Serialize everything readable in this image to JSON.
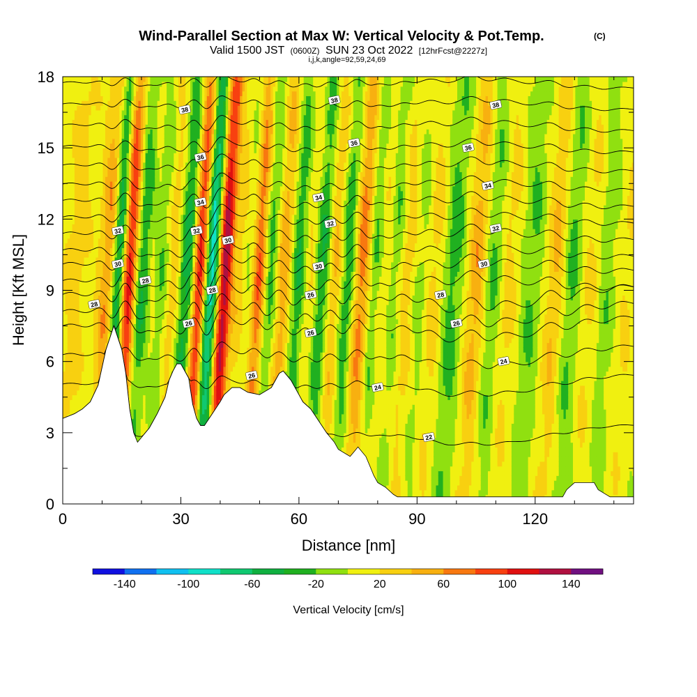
{
  "title": {
    "main": "Wind-Parallel Section at Max W: Vertical Velocity & Pot.Temp.",
    "units_tag": "(C)",
    "valid_a": "Valid 1500 JST",
    "valid_b": "(0600Z)",
    "valid_c": "SUN 23 Oct 2022",
    "valid_d": "[12hrFcst@2227z]",
    "indices": "i,j,k,angle=92,59,24,69"
  },
  "chart_data": {
    "type": "heatmap",
    "xlabel": "Distance [nm]",
    "ylabel": "Height [Kft MSL]",
    "xlim": [
      0,
      145
    ],
    "ylim": [
      0,
      18
    ],
    "x_ticks": [
      "0",
      "30",
      "60",
      "90",
      "120"
    ],
    "x_tick_values": [
      0,
      30,
      60,
      90,
      120
    ],
    "y_ticks": [
      "0",
      "3",
      "6",
      "9",
      "12",
      "15",
      "18"
    ],
    "y_tick_values": [
      0,
      3,
      6,
      9,
      12,
      15,
      18
    ],
    "colorbar": {
      "label": "Vertical Velocity [cm/s]",
      "tick_labels": [
        "-140",
        "-100",
        "-60",
        "-20",
        "20",
        "60",
        "100",
        "140"
      ],
      "tick_values": [
        -140,
        -100,
        -60,
        -20,
        20,
        60,
        100,
        140
      ],
      "bounds": [
        -160,
        -140,
        -120,
        -100,
        -80,
        -60,
        -40,
        -20,
        0,
        20,
        40,
        60,
        80,
        100,
        120,
        140,
        160
      ],
      "colors": [
        "#1010e0",
        "#1070f0",
        "#10c0f0",
        "#10e0c8",
        "#10c870",
        "#10b040",
        "#20b020",
        "#90e010",
        "#f0f010",
        "#f8d010",
        "#f8b010",
        "#f87810",
        "#f84010",
        "#e01010",
        "#b01040",
        "#701080"
      ]
    },
    "w_updraft_bands": [
      {
        "x": 2,
        "amp": 25
      },
      {
        "x": 10.5,
        "amp": 60
      },
      {
        "x": 15.5,
        "amp": 120
      },
      {
        "x": 21,
        "amp": 55
      },
      {
        "x": 26.5,
        "amp": 45
      },
      {
        "x": 33.5,
        "amp": 120
      },
      {
        "x": 40,
        "amp": 145
      },
      {
        "x": 44,
        "amp": 70
      },
      {
        "x": 48.5,
        "amp": 100
      },
      {
        "x": 55,
        "amp": 60
      },
      {
        "x": 62,
        "amp": 45
      },
      {
        "x": 68,
        "amp": 55
      },
      {
        "x": 75,
        "amp": 80
      },
      {
        "x": 80,
        "amp": 50
      },
      {
        "x": 86,
        "amp": 35
      },
      {
        "x": 93,
        "amp": 30
      },
      {
        "x": 104,
        "amp": 50
      },
      {
        "x": 112,
        "amp": 25
      },
      {
        "x": 124,
        "amp": 40
      },
      {
        "x": 133,
        "amp": 22
      },
      {
        "x": 142,
        "amp": 18
      }
    ],
    "w_downdraft_bands": [
      {
        "x": 13,
        "amp": -100
      },
      {
        "x": 19.5,
        "amp": -80
      },
      {
        "x": 24,
        "amp": -50
      },
      {
        "x": 30.5,
        "amp": -70
      },
      {
        "x": 36.5,
        "amp": -110
      },
      {
        "x": 42,
        "amp": -40
      },
      {
        "x": 46,
        "amp": -60
      },
      {
        "x": 51.5,
        "amp": -50
      },
      {
        "x": 58.5,
        "amp": -60
      },
      {
        "x": 64.5,
        "amp": -70
      },
      {
        "x": 71,
        "amp": -60
      },
      {
        "x": 78,
        "amp": -70
      },
      {
        "x": 83,
        "amp": -40
      },
      {
        "x": 90,
        "amp": -20
      },
      {
        "x": 98,
        "amp": -35
      },
      {
        "x": 108,
        "amp": -30
      },
      {
        "x": 118,
        "amp": -25
      },
      {
        "x": 128,
        "amp": -30
      },
      {
        "x": 137,
        "amp": -20
      }
    ],
    "terrain": {
      "x": [
        0,
        3,
        5,
        7,
        9,
        11,
        13,
        15,
        16,
        17,
        18,
        19,
        20,
        22,
        24,
        26,
        27,
        28,
        29,
        30,
        32,
        33,
        34,
        35,
        36,
        38,
        40,
        41,
        43,
        45,
        47,
        50,
        53,
        55,
        56,
        58,
        60,
        61,
        63,
        65,
        67,
        69,
        70,
        72,
        73,
        74,
        75,
        77,
        78,
        79,
        80,
        82,
        84,
        85,
        87,
        90,
        95,
        100,
        110,
        120,
        127,
        128,
        130,
        135,
        136,
        139,
        140,
        145
      ],
      "y": [
        3.6,
        3.8,
        4.0,
        4.3,
        5.0,
        6.5,
        7.5,
        6.5,
        5.5,
        4.0,
        3.0,
        2.6,
        2.8,
        3.2,
        3.8,
        4.5,
        5.2,
        5.6,
        5.9,
        5.9,
        5.3,
        4.2,
        3.6,
        3.3,
        3.3,
        3.8,
        4.3,
        4.6,
        4.9,
        4.9,
        4.7,
        4.6,
        4.9,
        5.5,
        5.6,
        5.2,
        4.6,
        4.3,
        4.0,
        3.5,
        3.0,
        2.6,
        2.3,
        2.1,
        2.0,
        2.2,
        2.4,
        2.0,
        1.6,
        1.2,
        0.9,
        0.7,
        0.4,
        0.3,
        0.3,
        0.3,
        0.3,
        0.3,
        0.3,
        0.3,
        0.3,
        0.6,
        0.9,
        0.9,
        0.6,
        0.3,
        0.3,
        0.3
      ]
    },
    "theta_contours": [
      {
        "label": "22",
        "base": 2.9,
        "amp": 0.3
      },
      {
        "label": "24",
        "base": 5.0,
        "amp": 0.5
      },
      {
        "label": "25",
        "base": 6.2,
        "amp": 0.8
      },
      {
        "label": "26",
        "base": 7.4,
        "amp": 1.0
      },
      {
        "label": "27",
        "base": 8.0,
        "amp": 1.1
      },
      {
        "label": "28",
        "base": 8.7,
        "amp": 1.2
      },
      {
        "label": "29",
        "base": 9.3,
        "amp": 1.0
      },
      {
        "label": "30",
        "base": 10.0,
        "amp": 1.0
      },
      {
        "label": "31",
        "base": 10.6,
        "amp": 0.9
      },
      {
        "label": "32",
        "base": 11.3,
        "amp": 0.9
      },
      {
        "label": "33",
        "base": 12.0,
        "amp": 0.8
      },
      {
        "label": "34",
        "base": 12.7,
        "amp": 0.8
      },
      {
        "label": "35",
        "base": 13.4,
        "amp": 0.7
      },
      {
        "label": "36",
        "base": 14.2,
        "amp": 0.7
      },
      {
        "label": "37",
        "base": 15.0,
        "amp": 0.6
      },
      {
        "label": "38",
        "base": 15.9,
        "amp": 0.6
      },
      {
        "label": "39",
        "base": 16.8,
        "amp": 0.5
      },
      {
        "label": "40",
        "base": 17.7,
        "amp": 0.5
      }
    ],
    "contour_labels": [
      {
        "text": "38",
        "x": 31,
        "y": 16.6
      },
      {
        "text": "38",
        "x": 69,
        "y": 17.0
      },
      {
        "text": "38",
        "x": 110,
        "y": 16.8
      },
      {
        "text": "36",
        "x": 35,
        "y": 14.6
      },
      {
        "text": "36",
        "x": 74,
        "y": 15.2
      },
      {
        "text": "36",
        "x": 103,
        "y": 15.0
      },
      {
        "text": "34",
        "x": 35,
        "y": 12.7
      },
      {
        "text": "34",
        "x": 65,
        "y": 12.9
      },
      {
        "text": "34",
        "x": 108,
        "y": 13.4
      },
      {
        "text": "32",
        "x": 14,
        "y": 11.5
      },
      {
        "text": "32",
        "x": 34,
        "y": 11.5
      },
      {
        "text": "32",
        "x": 68,
        "y": 11.8
      },
      {
        "text": "32",
        "x": 110,
        "y": 11.6
      },
      {
        "text": "30",
        "x": 14,
        "y": 10.1
      },
      {
        "text": "30",
        "x": 42,
        "y": 11.1
      },
      {
        "text": "30",
        "x": 65,
        "y": 10.0
      },
      {
        "text": "30",
        "x": 107,
        "y": 10.1
      },
      {
        "text": "28",
        "x": 21,
        "y": 9.4
      },
      {
        "text": "28",
        "x": 38,
        "y": 9.0
      },
      {
        "text": "28",
        "x": 96,
        "y": 8.8
      },
      {
        "text": "28",
        "x": 8,
        "y": 8.4
      },
      {
        "text": "26",
        "x": 32,
        "y": 7.6
      },
      {
        "text": "26",
        "x": 63,
        "y": 8.8
      },
      {
        "text": "26",
        "x": 100,
        "y": 7.6
      },
      {
        "text": "26",
        "x": 63,
        "y": 7.2
      },
      {
        "text": "26",
        "x": 48,
        "y": 5.4
      },
      {
        "text": "24",
        "x": 80,
        "y": 4.9
      },
      {
        "text": "24",
        "x": 112,
        "y": 6.0
      },
      {
        "text": "22",
        "x": 93,
        "y": 2.8
      }
    ]
  }
}
